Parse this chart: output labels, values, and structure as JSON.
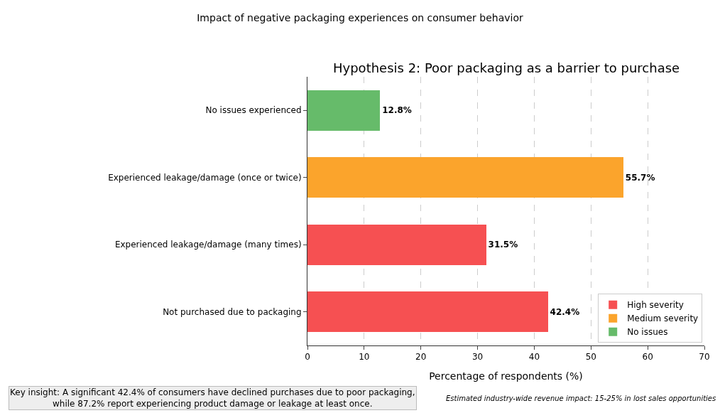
{
  "chart_data": {
    "type": "bar",
    "orientation": "horizontal",
    "stacked": true,
    "title": "Impact of negative packaging experiences on consumer behavior",
    "subtitle": "Hypothesis 2: Poor packaging as a barrier to purchase",
    "xlabel": "Percentage of respondents (%)",
    "categories": [
      "No issues experienced",
      "Experienced leakage/damage (once or twice)",
      "Experienced leakage/damage (many times)",
      "Not purchased due to packaging"
    ],
    "series": [
      {
        "name": "High severity",
        "color": "#f65052",
        "values": [
          null,
          null,
          31.5,
          42.4
        ]
      },
      {
        "name": "Medium severity",
        "color": "#fba42c",
        "values": [
          null,
          55.7,
          null,
          null
        ]
      },
      {
        "name": "No issues",
        "color": "#66bb6a",
        "values": [
          12.8,
          null,
          null,
          null
        ]
      }
    ],
    "value_labels": [
      "12.8%",
      "55.7%",
      "31.5%",
      "42.4%"
    ],
    "xlim": [
      0,
      70
    ],
    "xticks": [
      0,
      10,
      20,
      30,
      40,
      50,
      60,
      70
    ],
    "grid": "x",
    "legend": "bottom right",
    "annotations": [
      "Key insight: A significant 42.4% of consumers have declined purchases due to poor packaging,\nwhile 87.2% report experiencing product damage or leakage at least once.",
      "Estimated industry-wide revenue impact: 15-25% in lost sales opportunities"
    ]
  }
}
